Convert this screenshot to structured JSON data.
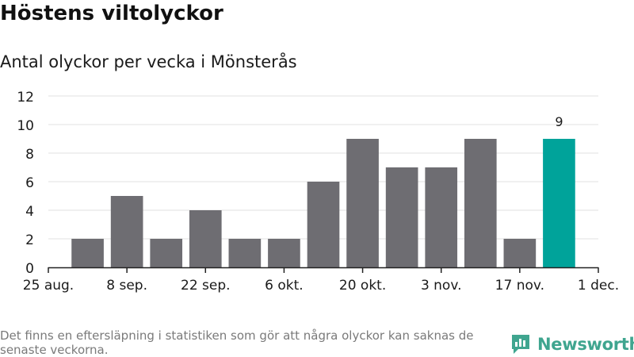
{
  "title": "Höstens viltolyckor",
  "subtitle": "Antal olyckor per vecka i Mönsterås",
  "footnote": "Det finns en eftersläpning i statistiken som gör att några olyckor kan saknas de senaste veckorna.",
  "logo": {
    "name": "Newsworthy",
    "icon": "bar-chart-logo-icon",
    "color": "#3fa58f"
  },
  "colors": {
    "bar": "#6e6d72",
    "highlight": "#00a39a",
    "grid": "#e2e2e2",
    "axis": "#222222"
  },
  "chart_data": {
    "type": "bar",
    "x_axis": {
      "ticks": [
        "25 aug.",
        "8 sep.",
        "22 sep.",
        "6 okt.",
        "20 okt.",
        "3 nov.",
        "17 nov.",
        "1 dec."
      ],
      "range_weeks": [
        0,
        14
      ]
    },
    "y_axis": {
      "ticks": [
        0,
        2,
        4,
        6,
        8,
        10,
        12
      ],
      "ylim": [
        0,
        12
      ],
      "grid": true
    },
    "bars": [
      {
        "week_start": "1 sep.",
        "value": 2
      },
      {
        "week_start": "8 sep.",
        "value": 5
      },
      {
        "week_start": "15 sep.",
        "value": 2
      },
      {
        "week_start": "22 sep.",
        "value": 4
      },
      {
        "week_start": "29 sep.",
        "value": 2
      },
      {
        "week_start": "6 okt.",
        "value": 2
      },
      {
        "week_start": "13 okt.",
        "value": 6
      },
      {
        "week_start": "20 okt.",
        "value": 9
      },
      {
        "week_start": "27 okt.",
        "value": 7
      },
      {
        "week_start": "3 nov.",
        "value": 7
      },
      {
        "week_start": "10 nov.",
        "value": 9
      },
      {
        "week_start": "17 nov.",
        "value": 2
      },
      {
        "week_start": "24 nov.",
        "value": 9,
        "highlight": true,
        "label": "9"
      }
    ]
  }
}
